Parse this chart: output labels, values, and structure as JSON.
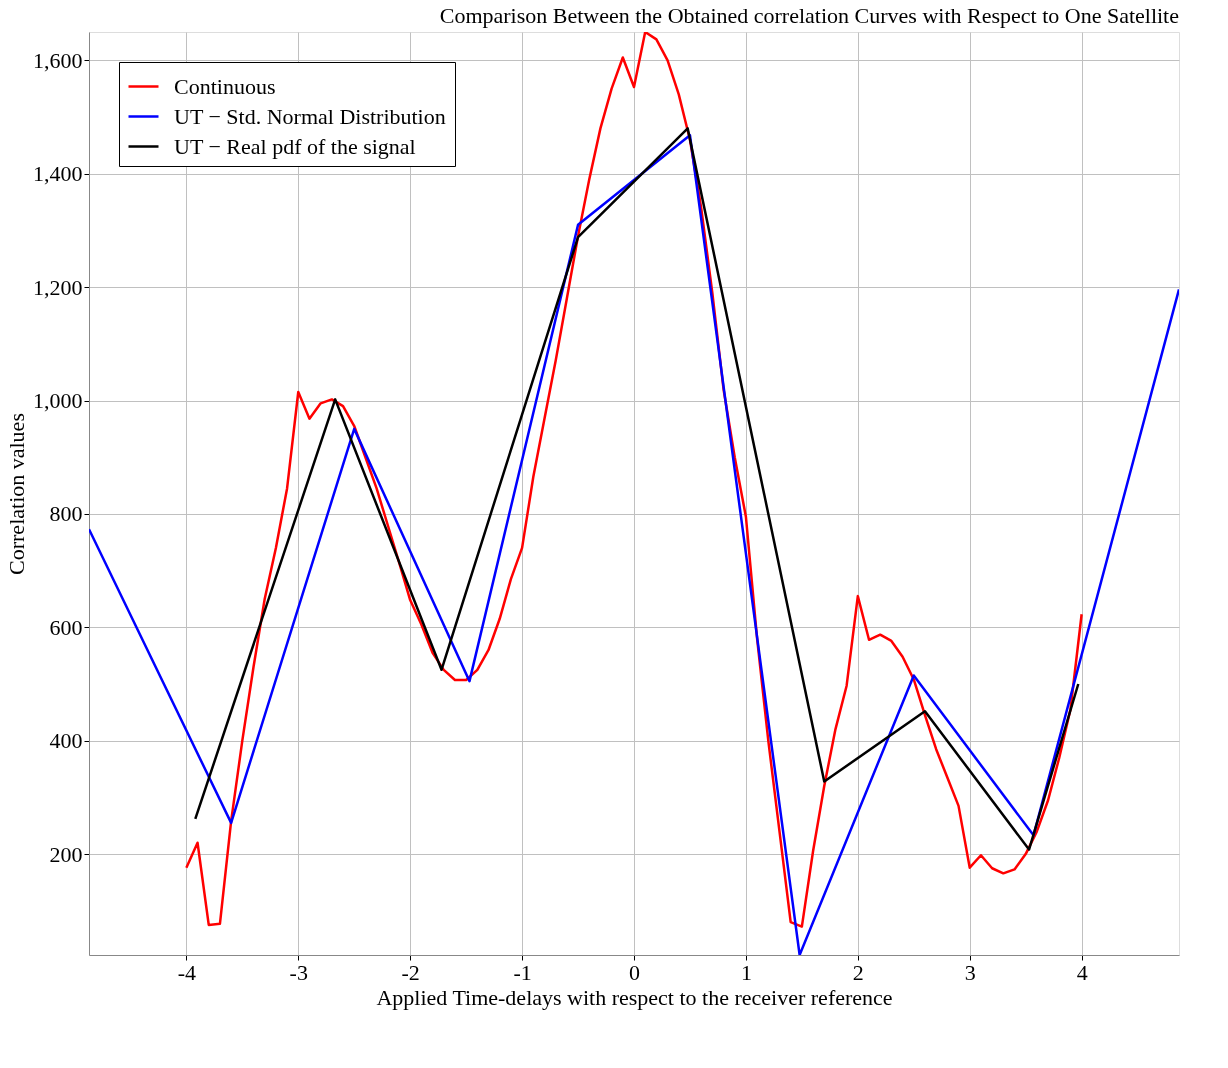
{
  "chart_data": {
    "type": "line",
    "title": "Comparison Between the Obtained correlation Curves with Respect to One Satellite",
    "xlabel": "Applied Time-delays with respect to the receiver reference",
    "ylabel": "Correlation values",
    "xlim": [
      -4.87,
      4.87
    ],
    "ylim": [
      22,
      1650
    ],
    "xticks": [
      -4,
      -3,
      -2,
      -1,
      0,
      1,
      2,
      3,
      4
    ],
    "yticks": [
      200,
      400,
      600,
      800,
      {
        "value": 1000,
        "label": "1,000"
      },
      {
        "value": 1200,
        "label": "1,200"
      },
      {
        "value": 1400,
        "label": "1,400"
      },
      {
        "value": 1600,
        "label": "1,600"
      }
    ],
    "grid": true,
    "legend": "top left",
    "marker": "none",
    "line_style": "solid",
    "series": [
      {
        "name": "Continuous",
        "color": "#ff0000",
        "x": [
          -4.0,
          -3.9,
          -3.8,
          -3.7,
          -3.6,
          -3.5,
          -3.4,
          -3.3,
          -3.2,
          -3.1,
          -3.0,
          -2.9,
          -2.8,
          -2.7,
          -2.6,
          -2.5,
          -2.4,
          -2.3,
          -2.2,
          -2.1,
          -2.0,
          -1.9,
          -1.8,
          -1.7,
          -1.6,
          -1.5,
          -1.4,
          -1.3,
          -1.2,
          -1.1,
          -1.0,
          -0.9,
          -0.8,
          -0.7,
          -0.6,
          -0.5,
          -0.4,
          -0.3,
          -0.2,
          -0.1,
          0.0,
          0.1,
          0.2,
          0.3,
          0.4,
          0.5,
          0.6,
          0.7,
          0.8,
          0.9,
          1.0,
          1.1,
          1.2,
          1.3,
          1.4,
          1.5,
          1.6,
          1.7,
          1.8,
          1.9,
          2.0,
          2.1,
          2.2,
          2.3,
          2.4,
          2.5,
          2.6,
          2.7,
          2.8,
          2.9,
          3.0,
          3.1,
          3.2,
          3.3,
          3.4,
          3.5,
          3.6,
          3.7,
          3.8,
          3.9,
          4.0
        ],
        "values": [
          176,
          220,
          75,
          77,
          258,
          400,
          530,
          650,
          740,
          845,
          1015,
          968,
          995,
          1002,
          990,
          955,
          900,
          845,
          780,
          715,
          648,
          605,
          555,
          525,
          507,
          507,
          525,
          560,
          615,
          685,
          740,
          865,
          968,
          1070,
          1180,
          1290,
          1390,
          1480,
          1550,
          1605,
          1553,
          1650,
          1637,
          1600,
          1540,
          1460,
          1340,
          1190,
          1020,
          900,
          795,
          580,
          400,
          240,
          80,
          72,
          205,
          320,
          420,
          497,
          655,
          578,
          587,
          576,
          548,
          508,
          445,
          385,
          335,
          285,
          176,
          198,
          175,
          166,
          173,
          200,
          240,
          295,
          370,
          455,
          623
        ]
      },
      {
        "name": "UT − Std. Normal Distribution",
        "color": "#0000ff",
        "x": [
          -4.87,
          -3.6,
          -2.5,
          -1.47,
          -0.5,
          0.5,
          1.48,
          2.5,
          3.57,
          4.87
        ],
        "values": [
          773,
          255,
          950,
          505,
          1310,
          1468,
          22,
          515,
          233,
          1196
        ]
      },
      {
        "name": "UT − Real pdf of the signal",
        "color": "#000000",
        "x": [
          -3.92,
          -2.67,
          -1.72,
          -0.5,
          0.48,
          1.7,
          2.6,
          3.53,
          3.97
        ],
        "values": [
          262,
          1002,
          525,
          1288,
          1480,
          328,
          452,
          208,
          500
        ]
      }
    ]
  }
}
